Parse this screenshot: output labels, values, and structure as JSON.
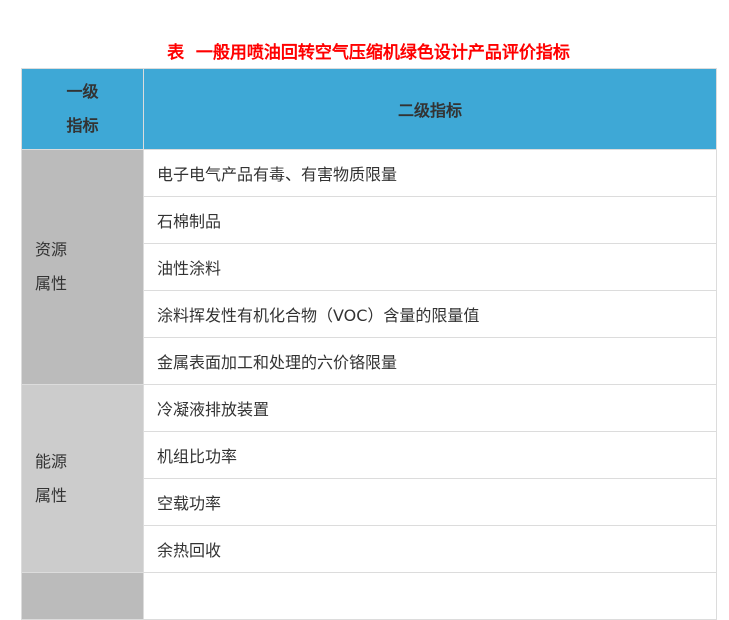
{
  "title": "表  一般用喷油回转空气压缩机绿色设计产品评价指标",
  "header": {
    "col1_line1": "一级",
    "col1_line2": "指标",
    "col2": "二级指标"
  },
  "colors": {
    "title": "#ff0000",
    "header_bg": "#3ea8d6",
    "group_bg_1": "#bbbbbb",
    "group_bg_2": "#cccccc"
  },
  "groups": [
    {
      "line1": "资源",
      "line2": "属性",
      "items": [
        "电子电气产品有毒、有害物质限量",
        "石棉制品",
        "油性涂料",
        "涂料挥发性有机化合物（VOC）含量的限量值",
        "金属表面加工和处理的六价铬限量"
      ]
    },
    {
      "line1": "能源",
      "line2": "属性",
      "items": [
        "冷凝液排放装置",
        "机组比功率",
        "空载功率",
        "余热回收"
      ]
    }
  ]
}
